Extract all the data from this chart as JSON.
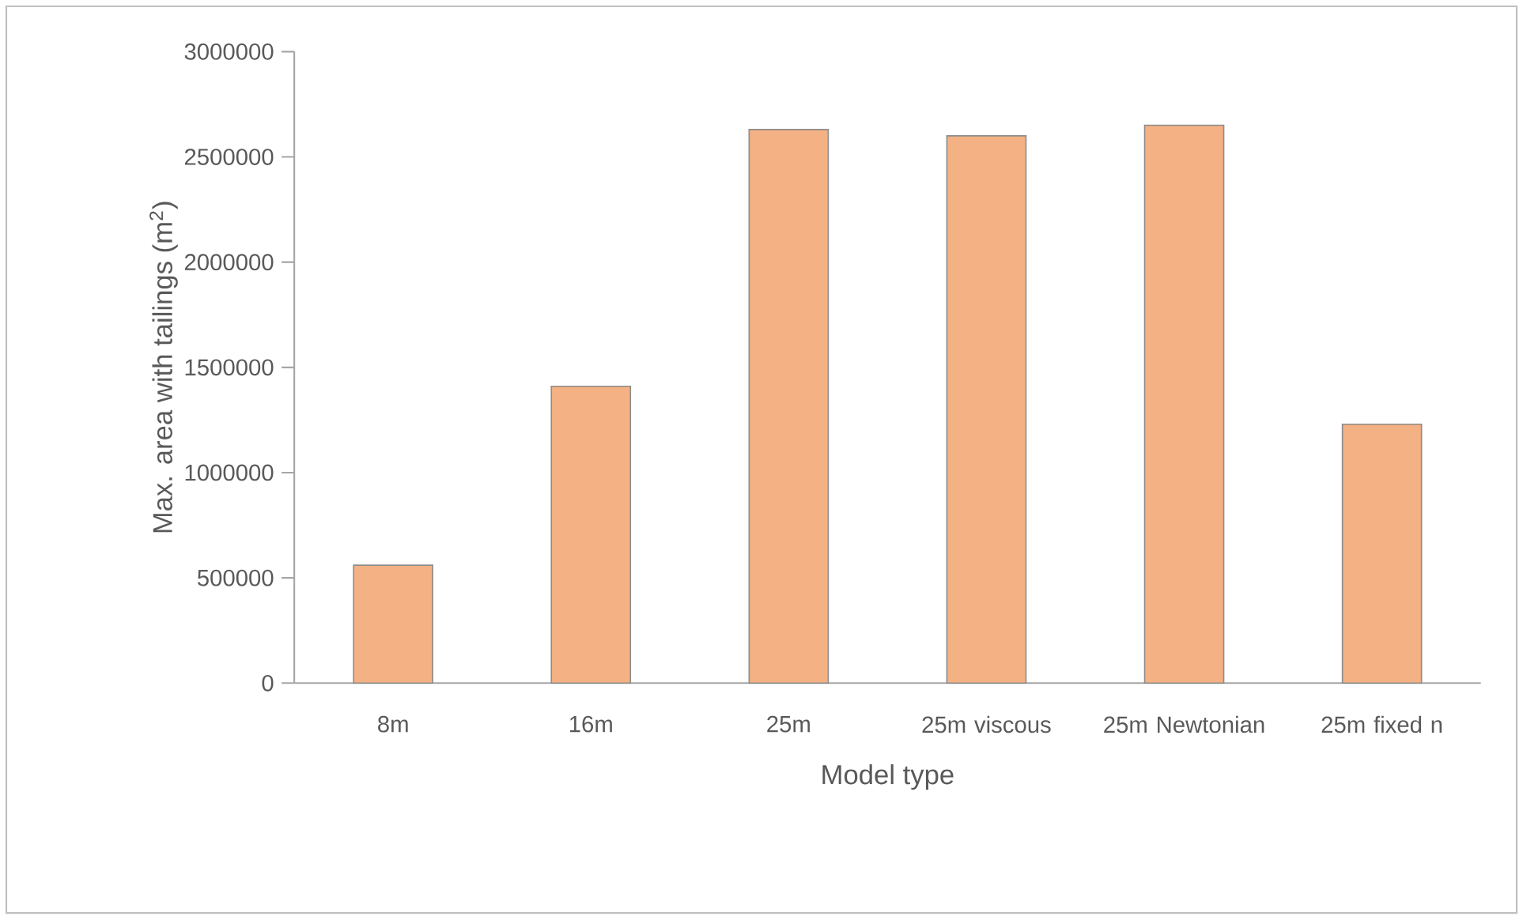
{
  "chart_data": {
    "type": "bar",
    "xlabel": "Model type",
    "ylabel": "Max. area with tailings (m$^{2}$)",
    "categories": [
      "8m",
      "16m",
      "25m",
      "25m viscous",
      "25m Newtonian",
      "25m fixed n"
    ],
    "values": [
      560000,
      1410000,
      2630000,
      2600000,
      2650000,
      1230000
    ],
    "color": "#f4b183",
    "ylim": [
      0,
      3000000
    ],
    "yticks": [
      0,
      500000,
      1000000,
      1500000,
      2000000,
      2500000,
      3000000
    ],
    "grid": false
  }
}
